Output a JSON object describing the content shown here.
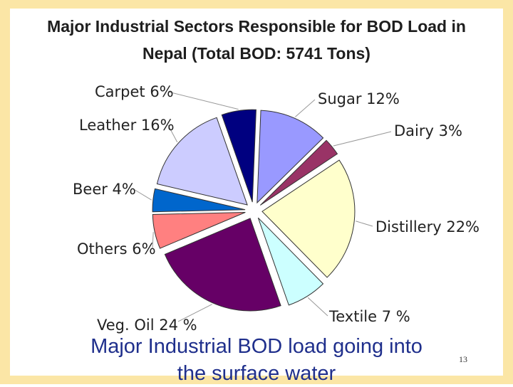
{
  "chart_data": {
    "type": "pie",
    "title_line1": "Major Industrial Sectors Responsible for BOD Load in",
    "title_line2": "Nepal (Total BOD: 5741 Tons)",
    "exploded": true,
    "slices": [
      {
        "label": "Sugar 12%",
        "value": 12,
        "color": "#9999ff"
      },
      {
        "label": "Dairy 3%",
        "value": 3,
        "color": "#993366"
      },
      {
        "label": "Distillery 22%",
        "value": 22,
        "color": "#ffffcc"
      },
      {
        "label": "Textile 7 %",
        "value": 7,
        "color": "#ccffff"
      },
      {
        "label": "Veg. Oil 24 %",
        "value": 24,
        "color": "#660066"
      },
      {
        "label": "Others 6%",
        "value": 6,
        "color": "#ff8080"
      },
      {
        "label": "Beer 4%",
        "value": 4,
        "color": "#0066cc"
      },
      {
        "label": "Leather 16%",
        "value": 16,
        "color": "#ccccff"
      },
      {
        "label": "Carpet 6%",
        "value": 6,
        "color": "#000080"
      }
    ]
  },
  "caption": {
    "line1": "Major Industrial BOD load going into",
    "line2": "the surface water"
  },
  "page_number": "13",
  "colors": {
    "frame": "#fbe6a6",
    "caption_text": "#1f2f8c",
    "slice_stroke": "#333333"
  }
}
